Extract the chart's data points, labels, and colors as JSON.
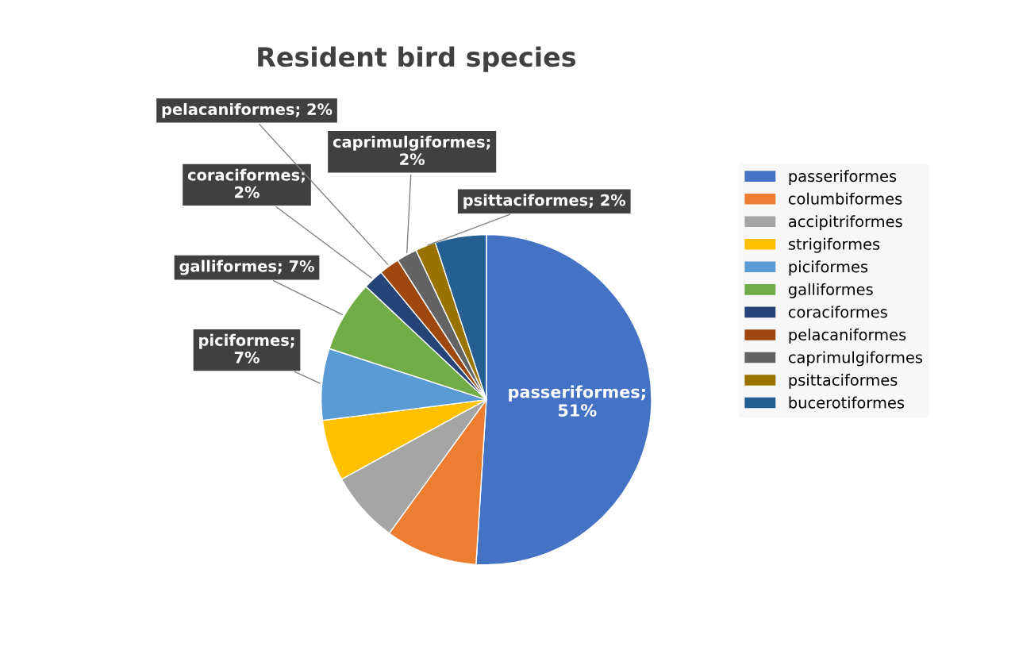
{
  "chart_data": {
    "type": "pie",
    "title": "Resident bird species",
    "categories": [
      "passeriformes",
      "columbiformes",
      "accipitriformes",
      "strigiformes",
      "piciformes",
      "galliformes",
      "coraciformes",
      "pelacaniformes",
      "caprimulgiformes",
      "psittaciformes",
      "bucerotiformes"
    ],
    "values": [
      51,
      9,
      7,
      6,
      7,
      7,
      2,
      2,
      2,
      2,
      5
    ],
    "colors": [
      "#4472c4",
      "#ed7d31",
      "#a5a5a5",
      "#ffc000",
      "#5b9bd5",
      "#70ad47",
      "#264478",
      "#9e480e",
      "#636363",
      "#997300",
      "#255e91"
    ],
    "value_labels": [
      "passeriformes;\n51%",
      null,
      null,
      null,
      "piciformes;\n7%",
      "galliformes; 7%",
      "coraciformes;\n2%",
      "pelacaniformes; 2%",
      "caprimulgiformes;\n2%",
      "psittaciformes; 2%",
      null
    ],
    "legend": "right"
  }
}
